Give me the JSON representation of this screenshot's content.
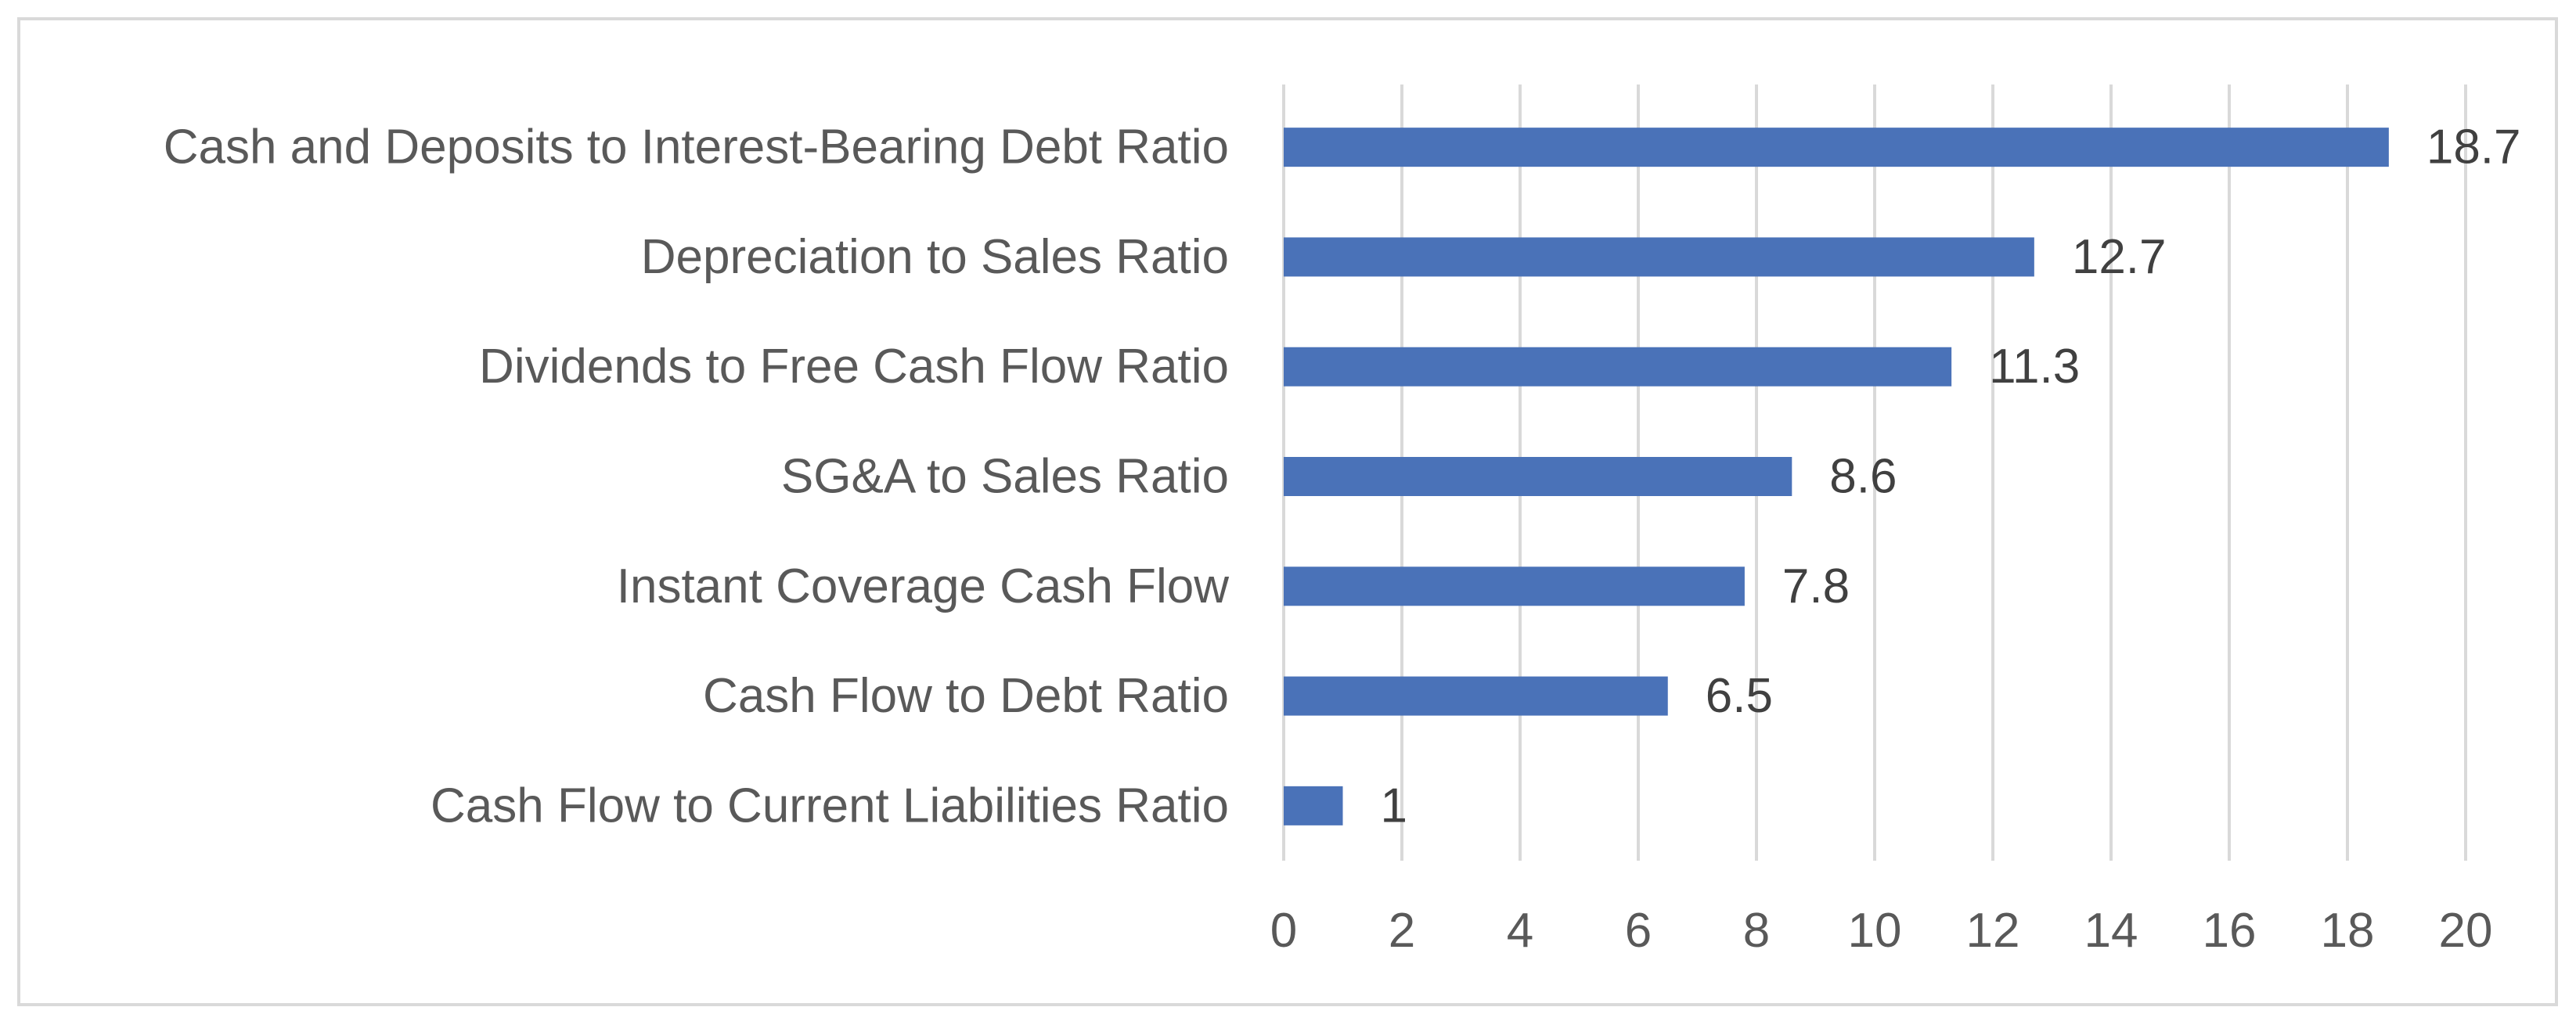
{
  "chart_data": {
    "type": "bar",
    "orientation": "horizontal",
    "title": "",
    "xlabel": "",
    "ylabel": "",
    "categories": [
      "Cash and Deposits to Interest-Bearing Debt Ratio",
      "Depreciation to Sales Ratio",
      "Dividends to Free Cash Flow Ratio",
      "SG&A to Sales Ratio",
      "Instant Coverage Cash Flow",
      "Cash Flow to Debt Ratio",
      "Cash Flow to Current Liabilities Ratio"
    ],
    "values": [
      18.7,
      12.7,
      11.3,
      8.6,
      7.8,
      6.5,
      1
    ],
    "value_labels": [
      "18.7",
      "12.7",
      "11.3",
      "8.6",
      "7.8",
      "6.5",
      "1"
    ],
    "xlim": [
      0,
      20
    ],
    "ticks": [
      "0",
      "2",
      "4",
      "6",
      "8",
      "10",
      "12",
      "14",
      "16",
      "18",
      "20"
    ],
    "grid": "vertical",
    "legend": "none",
    "colors": {
      "bar": "#4a72b8",
      "grid": "#d9d9d9",
      "frame": "#d9d9d9",
      "label_text": "#595959",
      "value_text": "#404040"
    }
  }
}
